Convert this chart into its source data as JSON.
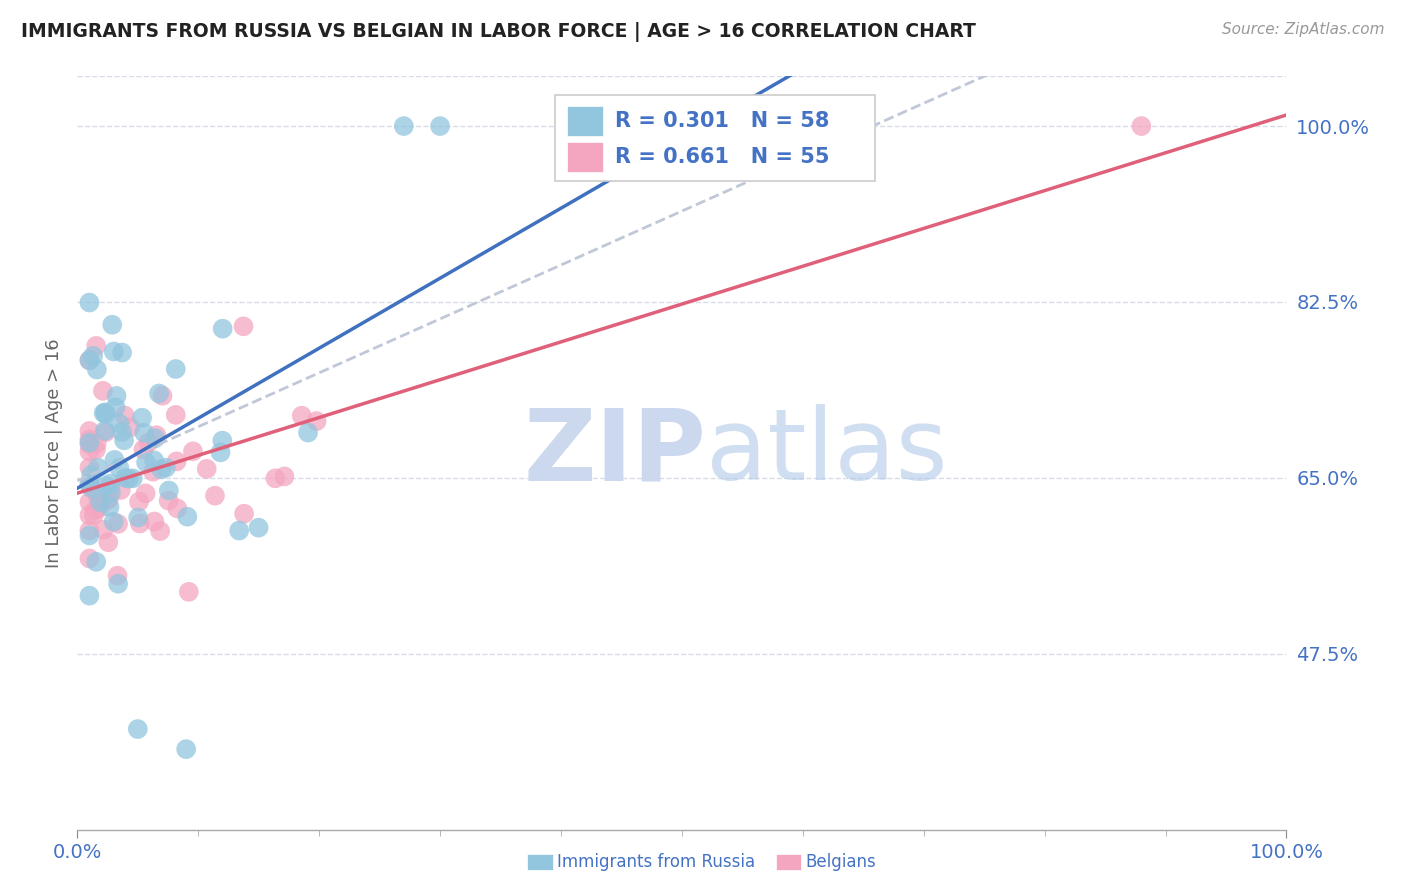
{
  "title": "IMMIGRANTS FROM RUSSIA VS BELGIAN IN LABOR FORCE | AGE > 16 CORRELATION CHART",
  "source": "Source: ZipAtlas.com",
  "ylabel": "In Labor Force | Age > 16",
  "xlim": [
    0.0,
    1.0
  ],
  "ylim": [
    0.3,
    1.05
  ],
  "yticks": [
    0.475,
    0.65,
    0.825,
    1.0
  ],
  "ytick_labels": [
    "47.5%",
    "65.0%",
    "82.5%",
    "100.0%"
  ],
  "xtick_labels_bottom": [
    "0.0%",
    "100.0%"
  ],
  "legend_russia_R": "0.301",
  "legend_russia_N": "58",
  "legend_belgian_R": "0.661",
  "legend_belgian_N": "55",
  "blue_color": "#92c5de",
  "pink_color": "#f4a6c0",
  "blue_line_color": "#4070c0",
  "pink_line_color": "#e0607a",
  "gray_dash_color": "#c0c8d8",
  "watermark_color": "#ccd8ee",
  "background_color": "#ffffff",
  "grid_color": "#d8dce8",
  "tick_color": "#4472c4",
  "ylabel_color": "#666666"
}
